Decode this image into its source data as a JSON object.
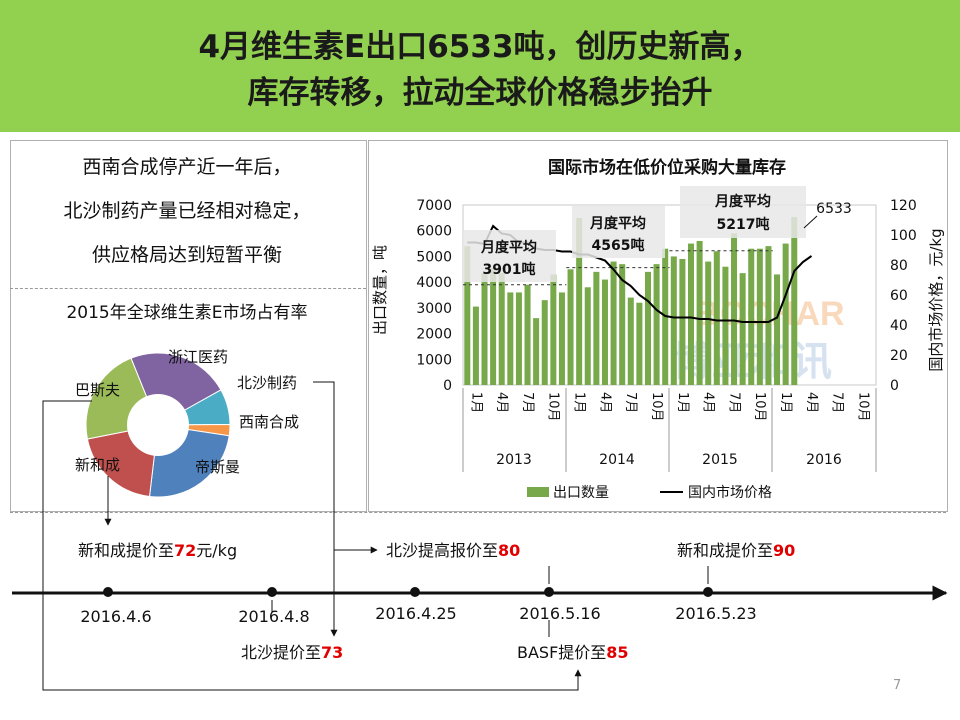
{
  "slide": {
    "title_line1": "4月维生素E出口6533吨，创历史新高，",
    "title_line2": "库存转移，拉动全球价格稳步抬升",
    "page_number": "7",
    "watermark_latin": "BOCHAR",
    "watermark_cn": "博亚和讯",
    "banner_color": "#92d050"
  },
  "notes": {
    "line1": "西南合成停产近一年后，",
    "line2": "北沙制药产量已经相对稳定，",
    "line3": "供应格局达到短暂平衡"
  },
  "market_share": {
    "title": "2015年全球维生素E市场占有率",
    "labels": [
      "浙江医药",
      "北沙制药",
      "西南合成",
      "帝斯曼",
      "新和成",
      "巴斯夫"
    ],
    "segments": [
      {
        "name": "浙江医药",
        "share": 0.23,
        "color": "#8064a2"
      },
      {
        "name": "北沙制药",
        "share": 0.08,
        "color": "#4bacc6"
      },
      {
        "name": "西南合成",
        "share": 0.025,
        "color": "#f79646"
      },
      {
        "name": "帝斯曼",
        "share": 0.245,
        "color": "#4f81bd"
      },
      {
        "name": "新和成",
        "share": 0.2,
        "color": "#c0504d"
      },
      {
        "name": "巴斯夫",
        "share": 0.22,
        "color": "#9bbb59"
      }
    ]
  },
  "chart_data": {
    "type": "bar",
    "title": "国际市场在低价位采购大量库存",
    "ylabel_left": "出口数量，吨",
    "ylabel_right": "国内市场价格，元/kg",
    "ylim_left": [
      0,
      7000
    ],
    "yticks_left": [
      "0",
      "1000",
      "2000",
      "3000",
      "4000",
      "5000",
      "6000",
      "7000"
    ],
    "ylim_right": [
      0,
      120
    ],
    "yticks_right": [
      "0",
      "20",
      "40",
      "60",
      "80",
      "100",
      "120"
    ],
    "x_tick_labels": [
      "1月",
      "4月",
      "7月",
      "10月",
      "1月",
      "4月",
      "7月",
      "10月",
      "1月",
      "4月",
      "7月",
      "10月",
      "1月",
      "4月",
      "7月",
      "10月"
    ],
    "years": [
      "2013",
      "2014",
      "2015",
      "2016"
    ],
    "months_count": 48,
    "series": [
      {
        "name": "出口数量",
        "kind": "bar",
        "color": "#77a94a",
        "values": [
          5400,
          3050,
          4350,
          4550,
          4350,
          3600,
          3600,
          3900,
          2600,
          3300,
          4300,
          3600,
          4500,
          6500,
          3800,
          4400,
          4100,
          4800,
          4700,
          3400,
          3200,
          4400,
          4700,
          5300,
          5000,
          4900,
          5500,
          5600,
          4800,
          5200,
          4600,
          5900,
          4350,
          5300,
          5300,
          5400,
          4300,
          5500,
          6533
        ]
      },
      {
        "name": "国内市场价格",
        "kind": "line",
        "color": "#000000",
        "values": [
          95,
          95,
          94,
          106,
          101,
          100,
          95,
          95,
          91,
          90,
          90,
          89,
          89,
          87,
          87,
          85,
          83,
          77,
          70,
          66,
          60,
          56,
          50,
          46,
          45,
          45,
          45,
          44,
          44,
          43,
          43,
          43,
          42,
          42,
          42,
          42,
          45,
          60,
          76,
          82,
          86
        ]
      }
    ],
    "annotations": [
      {
        "text1": "月度平均",
        "text2": "3901吨",
        "value": 3901
      },
      {
        "text1": "月度平均",
        "text2": "4565吨",
        "value": 4565
      },
      {
        "text1": "月度平均",
        "text2": "5217吨",
        "value": 5217
      },
      {
        "text1": "6533",
        "value": 6533
      }
    ],
    "legend": [
      "出口数量",
      "国内市场价格"
    ],
    "legend_position": "bottom"
  },
  "timeline": {
    "dates": [
      "2016.4.6",
      "2016.4.8",
      "2016.4.25",
      "2016.5.16",
      "2016.5.23"
    ],
    "events": [
      {
        "text": "新和成提价至",
        "num": "72",
        "unit": "元/kg"
      },
      {
        "text": "北沙提高报价至",
        "num": "80",
        "unit": ""
      },
      {
        "text": "新和成提价至",
        "num": "90",
        "unit": ""
      },
      {
        "text": "北沙提价至",
        "num": "73",
        "unit": ""
      },
      {
        "text": "BASF提价至",
        "num": "85",
        "unit": ""
      }
    ],
    "highlight_color": "#e00000"
  }
}
